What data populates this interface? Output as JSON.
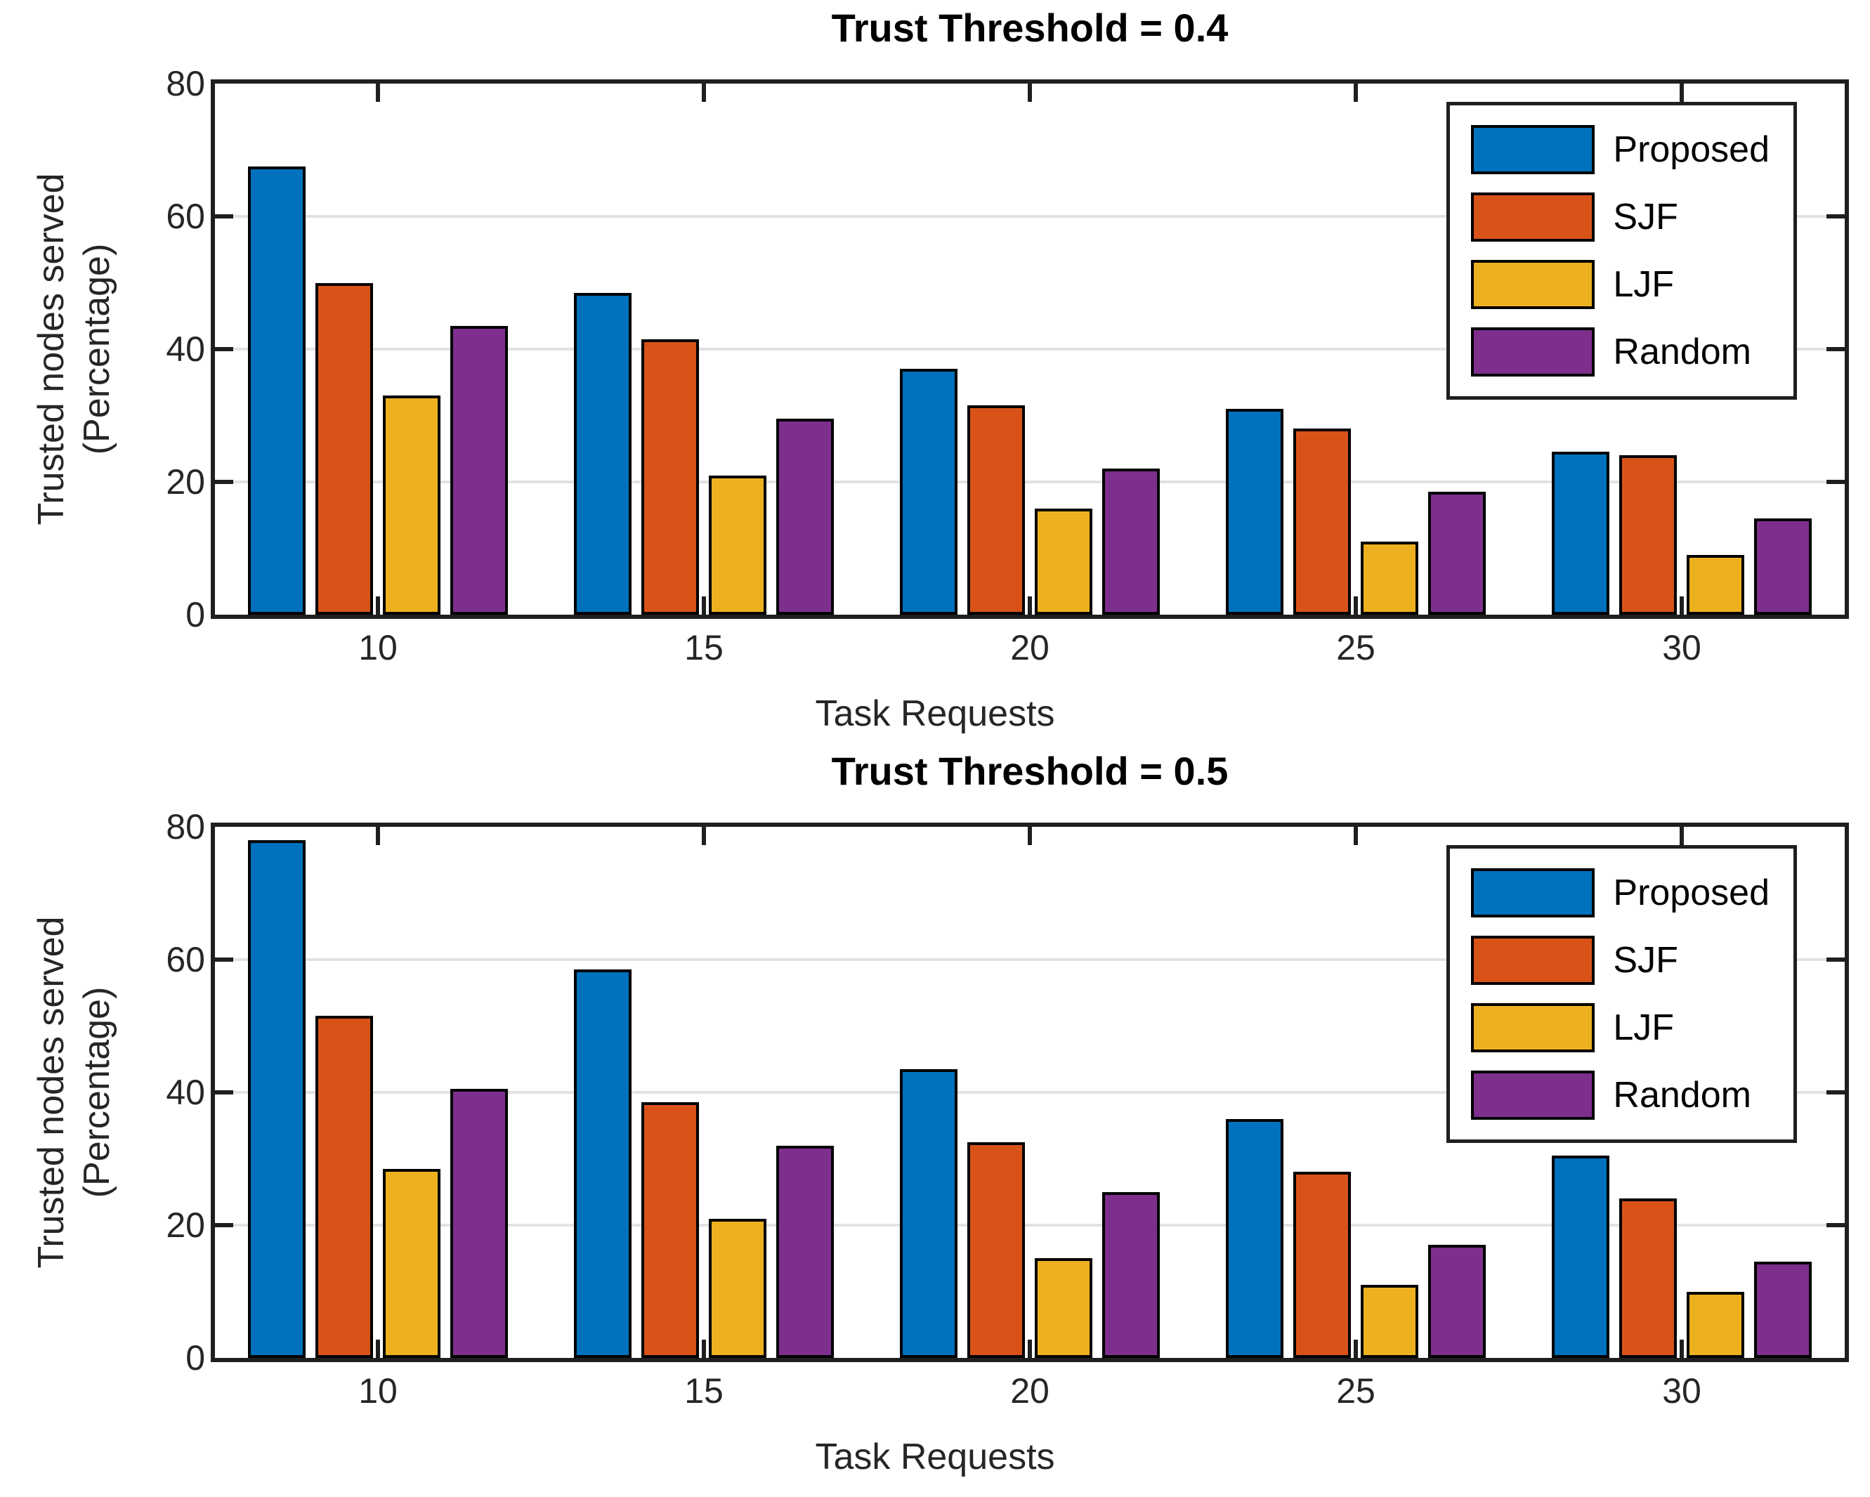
{
  "figure": {
    "background": "#ffffff",
    "axis_color": "#1f1f1f",
    "grid_color": "#e2e2e2",
    "bar_edge_color": "#000000"
  },
  "chart_data": [
    {
      "type": "bar",
      "title": "Trust Threshold = 0.4",
      "xlabel": "Task Requests",
      "ylabel_line1": "Trusted nodes served",
      "ylabel_line2": "(Percentage)",
      "categories": [
        "10",
        "15",
        "20",
        "25",
        "30"
      ],
      "yticks": [
        "80",
        "60",
        "40",
        "20",
        "0"
      ],
      "ylim": [
        0,
        80
      ],
      "grid": "horizontal",
      "legend_position": "upper-right",
      "series": [
        {
          "name": "Proposed",
          "color": "#0072BD",
          "values": [
            67.5,
            48.5,
            37,
            31,
            24.5
          ]
        },
        {
          "name": "SJF",
          "color": "#D95319",
          "values": [
            50,
            41.5,
            31.5,
            28,
            24
          ]
        },
        {
          "name": "LJF",
          "color": "#EDB120",
          "values": [
            33,
            21,
            16,
            11,
            9
          ]
        },
        {
          "name": "Random",
          "color": "#7E2F8E",
          "values": [
            43.5,
            29.5,
            22,
            18.5,
            14.5
          ]
        }
      ]
    },
    {
      "type": "bar",
      "title": "Trust Threshold = 0.5",
      "xlabel": "Task Requests",
      "ylabel_line1": "Trusted nodes served",
      "ylabel_line2": "(Percentage)",
      "categories": [
        "10",
        "15",
        "20",
        "25",
        "30"
      ],
      "yticks": [
        "80",
        "60",
        "40",
        "20",
        "0"
      ],
      "ylim": [
        0,
        80
      ],
      "grid": "horizontal",
      "legend_position": "upper-right",
      "series": [
        {
          "name": "Proposed",
          "color": "#0072BD",
          "values": [
            78,
            58.5,
            43.5,
            36,
            30.5
          ]
        },
        {
          "name": "SJF",
          "color": "#D95319",
          "values": [
            51.5,
            38.5,
            32.5,
            28,
            24
          ]
        },
        {
          "name": "LJF",
          "color": "#EDB120",
          "values": [
            28.5,
            21,
            15,
            11,
            10
          ]
        },
        {
          "name": "Random",
          "color": "#7E2F8E",
          "values": [
            40.5,
            32,
            25,
            17,
            14.5
          ]
        }
      ]
    }
  ]
}
